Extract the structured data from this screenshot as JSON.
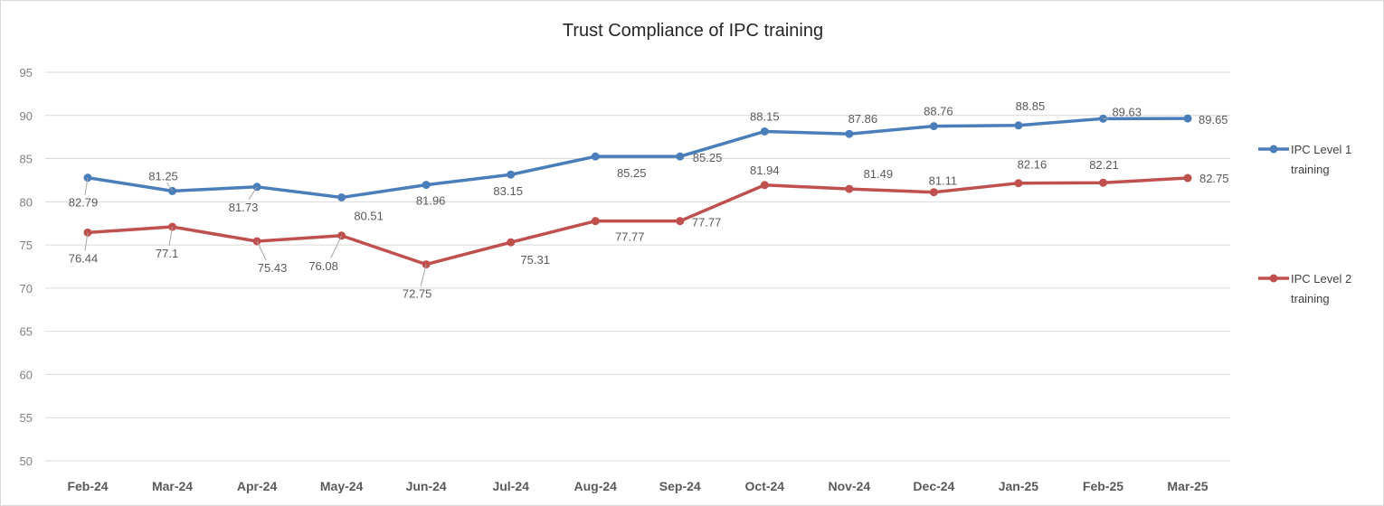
{
  "chart_data": {
    "type": "line",
    "title": "Trust Compliance of IPC training",
    "categories": [
      "Feb-24",
      "Mar-24",
      "Apr-24",
      "May-24",
      "Jun-24",
      "Jul-24",
      "Aug-24",
      "Sep-24",
      "Oct-24",
      "Nov-24",
      "Dec-24",
      "Jan-25",
      "Feb-25",
      "Mar-25"
    ],
    "ylim": [
      50,
      95
    ],
    "yticks": [
      50,
      55,
      60,
      65,
      70,
      75,
      80,
      85,
      90,
      95
    ],
    "grid": true,
    "legend_position": "right",
    "series": [
      {
        "name": "IPC Level 1 training",
        "legend_lines": [
          "IPC Level 1",
          "training"
        ],
        "color": "#4a7ebb",
        "values": [
          82.79,
          81.25,
          81.73,
          80.51,
          81.96,
          83.15,
          85.25,
          85.25,
          88.15,
          87.86,
          88.76,
          88.85,
          89.63,
          89.65
        ],
        "labels": [
          "82.79",
          "81.25",
          "81.73",
          "80.51",
          "81.96",
          "83.15",
          "85.25",
          "85.25",
          "88.15",
          "87.86",
          "88.76",
          "88.85",
          "89.63",
          "89.65"
        ]
      },
      {
        "name": "IPC Level 2 training",
        "legend_lines": [
          "IPC Level 2",
          "training"
        ],
        "color": "#c0504d",
        "values": [
          76.44,
          77.1,
          75.43,
          76.08,
          72.75,
          75.31,
          77.77,
          77.77,
          81.94,
          81.49,
          81.11,
          82.16,
          82.21,
          82.75
        ],
        "labels": [
          "76.44",
          "77.1",
          "75.43",
          "76.08",
          "72.75",
          "75.31",
          "77.77",
          "77.77",
          "81.94",
          "81.49",
          "81.11",
          "82.16",
          "82.21",
          "82.75"
        ]
      }
    ]
  }
}
